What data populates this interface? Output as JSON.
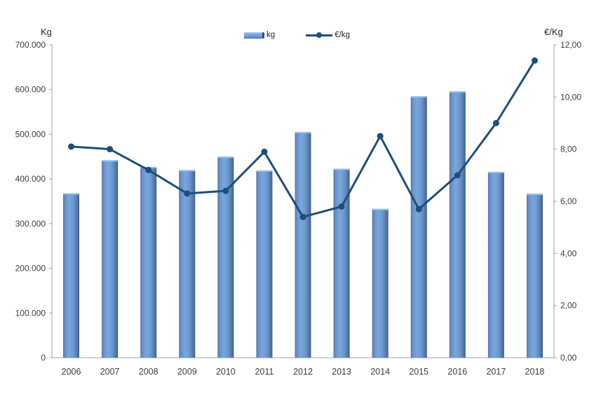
{
  "window": {
    "background": "#ffffff"
  },
  "legend": {
    "bar_label": "kg",
    "line_label": "€/kg"
  },
  "colors": {
    "bar_main": "#6b98d1",
    "bar_light": "#7ba6dd",
    "bar_left_edge": "#4a74ad",
    "bar_right_edge": "#3a5c8f",
    "bar_top_cap": "#9fbfe7",
    "line": "#1f4e79",
    "axis": "#a6a6a6",
    "text": "#3c3c3c"
  },
  "chart_data": {
    "type": "bar+line combo",
    "title": "",
    "categories": [
      "2006",
      "2007",
      "2008",
      "2009",
      "2010",
      "2011",
      "2012",
      "2013",
      "2014",
      "2015",
      "2016",
      "2017",
      "2018"
    ],
    "series": [
      {
        "name": "kg",
        "type": "bar",
        "axis": "left",
        "values": [
          368000,
          442000,
          427000,
          420000,
          450000,
          419000,
          505000,
          423000,
          333000,
          585000,
          596000,
          416000,
          367000
        ]
      },
      {
        "name": "€/kg",
        "type": "line",
        "axis": "right",
        "values": [
          8.1,
          8.0,
          7.2,
          6.3,
          6.4,
          7.9,
          5.4,
          5.8,
          8.5,
          5.7,
          7.0,
          9.0,
          11.4
        ]
      }
    ],
    "left_axis": {
      "label": "Kg",
      "min": 0,
      "max": 700000,
      "step": 100000,
      "tick_labels": [
        "0",
        "100.000",
        "200.000",
        "300.000",
        "400.000",
        "500.000",
        "600.000",
        "700.000"
      ]
    },
    "right_axis": {
      "label": "€/Kg",
      "min": 0,
      "max": 12,
      "step": 2,
      "tick_labels": [
        "0,00",
        "2,00",
        "4,00",
        "6,00",
        "8,00",
        "10,00",
        "12,00"
      ]
    },
    "grid": false,
    "legend_position": "top-center"
  }
}
